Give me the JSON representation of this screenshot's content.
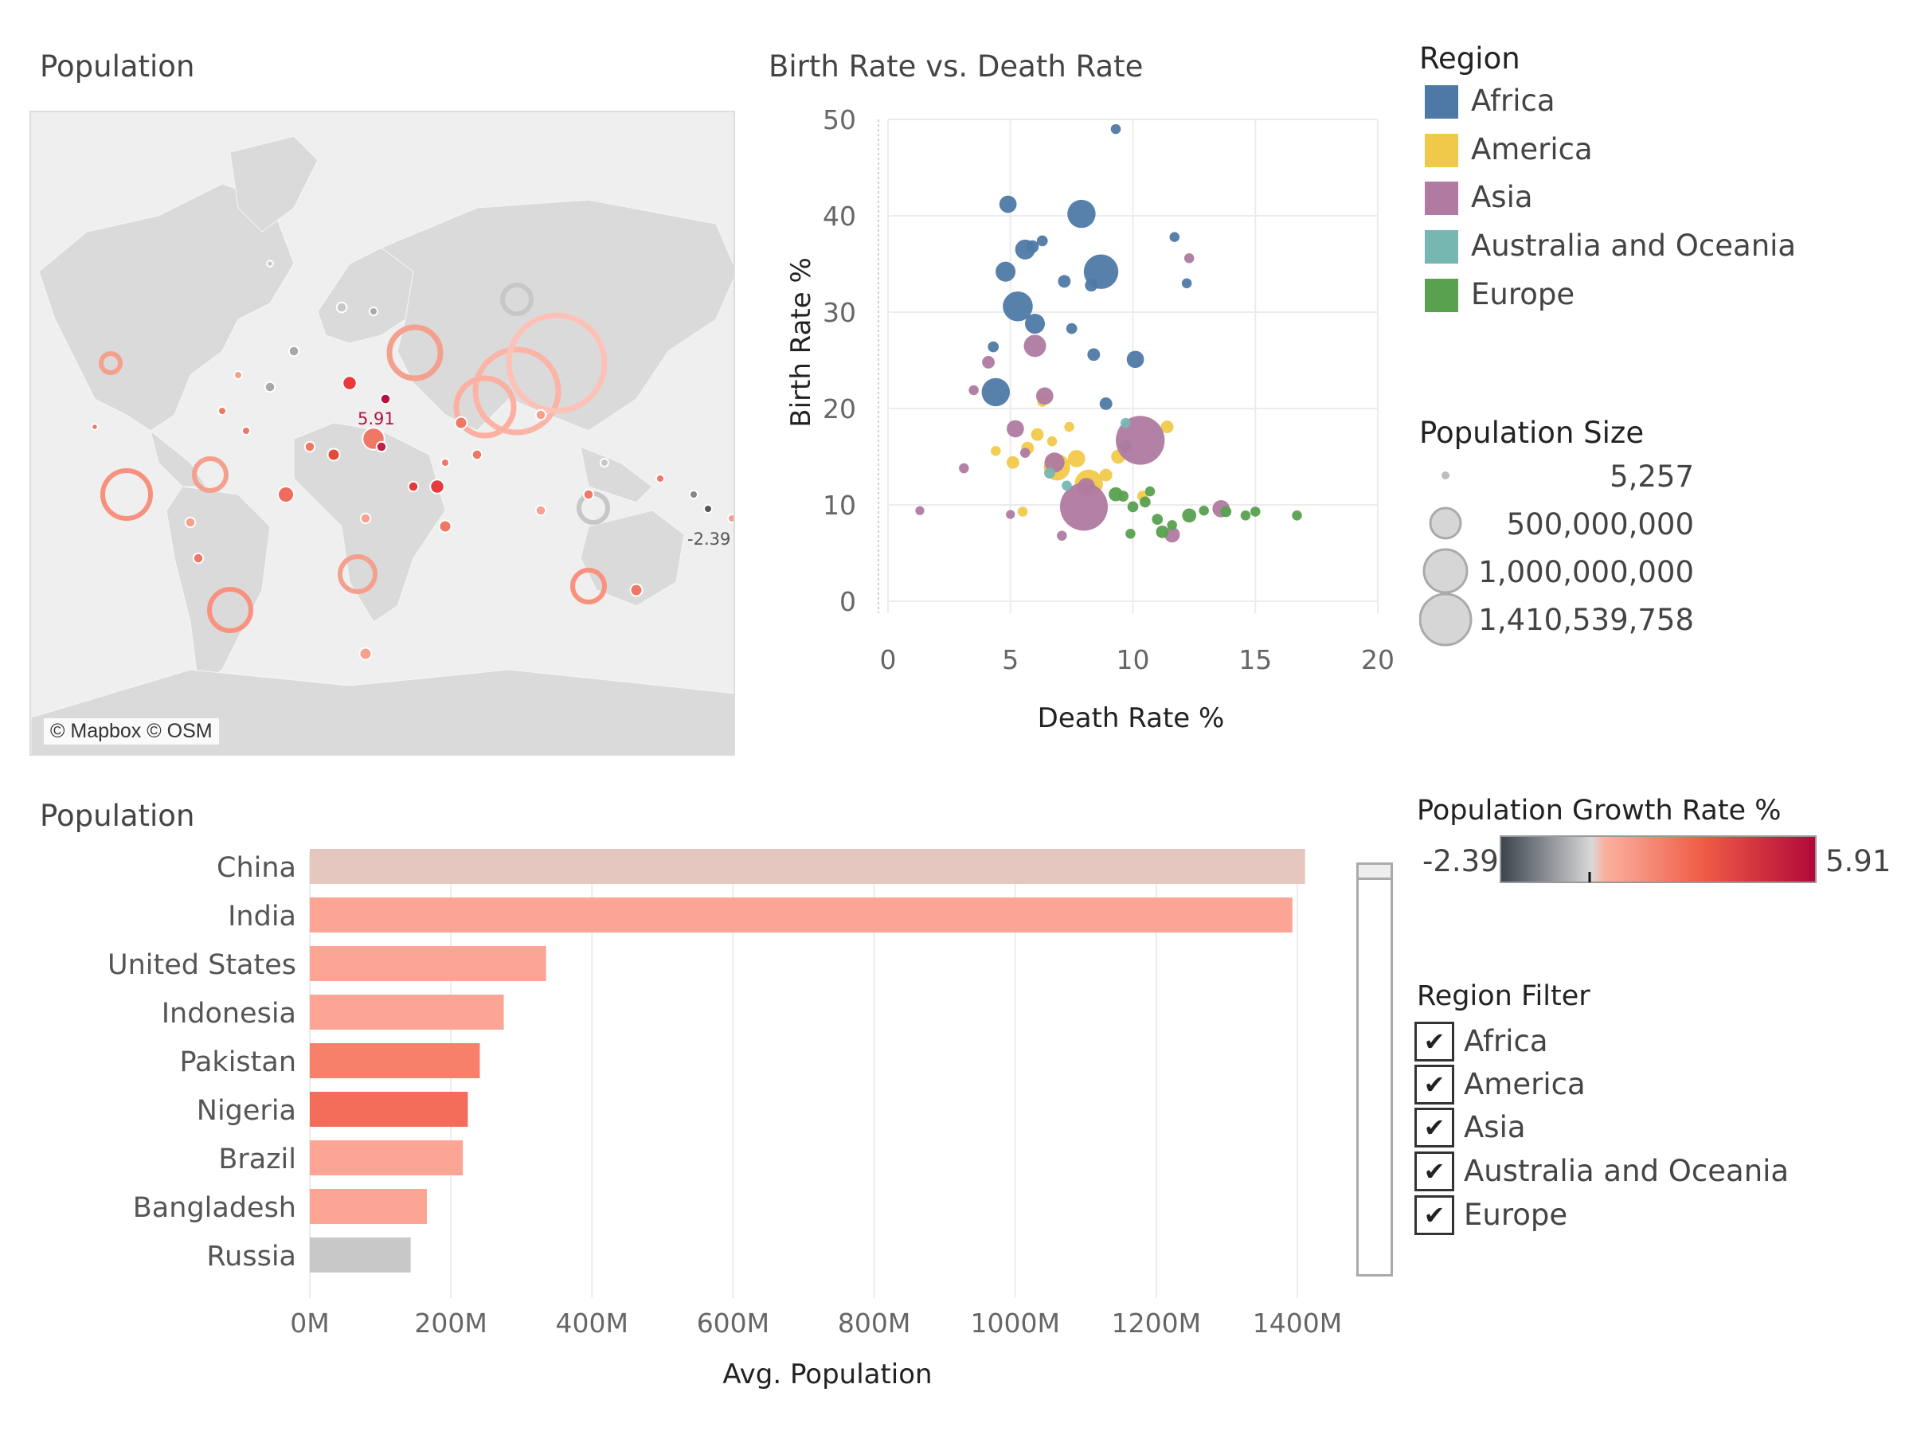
{
  "map": {
    "title": "Population",
    "credit": "© Mapbox © OSM",
    "label_max": "5.91",
    "label_min": "-2.39"
  },
  "scatter": {
    "title": "Birth Rate vs. Death Rate",
    "xlabel": "Death Rate %",
    "ylabel": "Birth Rate %",
    "x_ticks": [
      "0",
      "5",
      "10",
      "15",
      "20"
    ],
    "y_ticks": [
      "0",
      "10",
      "20",
      "30",
      "40",
      "50"
    ]
  },
  "region_legend": {
    "title": "Region",
    "items": [
      {
        "label": "Africa",
        "color": "#4e79a7"
      },
      {
        "label": "America",
        "color": "#f1c94a"
      },
      {
        "label": "Asia",
        "color": "#b07aa1"
      },
      {
        "label": "Australia and Oceania",
        "color": "#76b7b2"
      },
      {
        "label": "Europe",
        "color": "#59a14f"
      }
    ]
  },
  "size_legend": {
    "title": "Population Size",
    "items": [
      "5,257",
      "500,000,000",
      "1,000,000,000",
      "1,410,539,758"
    ]
  },
  "growth_legend": {
    "title": "Population Growth Rate %",
    "min": "-2.39",
    "max": "5.91"
  },
  "region_filter": {
    "title": "Region Filter",
    "items": [
      "Africa",
      "America",
      "Asia",
      "Australia and Oceania",
      "Europe"
    ]
  },
  "bar": {
    "title": "Population"
  },
  "chart_data": [
    {
      "type": "scatter",
      "title": "Birth Rate vs. Death Rate",
      "xlabel": "Death Rate %",
      "ylabel": "Birth Rate %",
      "xlim": [
        0,
        20
      ],
      "ylim": [
        0,
        50
      ],
      "grid": true,
      "series": [
        {
          "name": "Africa",
          "color": "#4e79a7",
          "points": [
            [
              8.7,
              34.2,
              60
            ],
            [
              7.9,
              40.2,
              40
            ],
            [
              4.9,
              41.2,
              15
            ],
            [
              5.3,
              30.6,
              45
            ],
            [
              4.4,
              21.7,
              40
            ],
            [
              5.6,
              36.5,
              20
            ],
            [
              10.1,
              25.1,
              15
            ],
            [
              9.3,
              49.0,
              5
            ],
            [
              4.8,
              34.2,
              20
            ],
            [
              6.0,
              28.8,
              20
            ],
            [
              7.2,
              33.2,
              8
            ],
            [
              8.3,
              32.8,
              8
            ],
            [
              5.9,
              36.8,
              8
            ],
            [
              8.4,
              25.6,
              8
            ],
            [
              8.9,
              20.5,
              8
            ],
            [
              9.7,
              16.1,
              8
            ],
            [
              7.5,
              28.3,
              6
            ],
            [
              6.3,
              37.4,
              6
            ],
            [
              4.3,
              26.4,
              6
            ],
            [
              11.7,
              37.8,
              5
            ],
            [
              12.2,
              33.0,
              5
            ]
          ]
        },
        {
          "name": "America",
          "color": "#f1c94a",
          "points": [
            [
              8.2,
              12.2,
              40
            ],
            [
              6.9,
              13.9,
              35
            ],
            [
              7.7,
              14.8,
              15
            ],
            [
              9.4,
              15.0,
              10
            ],
            [
              6.1,
              17.3,
              8
            ],
            [
              5.7,
              15.9,
              8
            ],
            [
              5.1,
              14.4,
              8
            ],
            [
              6.3,
              20.7,
              5
            ],
            [
              7.4,
              18.1,
              5
            ],
            [
              8.9,
              13.1,
              8
            ],
            [
              4.4,
              15.6,
              5
            ],
            [
              6.7,
              16.6,
              5
            ],
            [
              11.4,
              18.1,
              8
            ],
            [
              10.4,
              10.9,
              6
            ],
            [
              8.0,
              11.9,
              5
            ],
            [
              5.5,
              9.3,
              5
            ]
          ]
        },
        {
          "name": "Asia",
          "color": "#b07aa1",
          "points": [
            [
              10.3,
              16.7,
              120
            ],
            [
              8.0,
              9.8,
              115
            ],
            [
              6.0,
              26.5,
              25
            ],
            [
              5.2,
              17.9,
              15
            ],
            [
              6.8,
              14.4,
              20
            ],
            [
              8.1,
              11.9,
              15
            ],
            [
              13.6,
              9.6,
              15
            ],
            [
              11.6,
              6.9,
              12
            ],
            [
              6.4,
              21.3,
              15
            ],
            [
              4.1,
              24.8,
              8
            ],
            [
              12.3,
              35.6,
              5
            ],
            [
              3.5,
              21.9,
              5
            ],
            [
              3.1,
              13.8,
              5
            ],
            [
              5.6,
              15.4,
              5
            ],
            [
              7.1,
              6.8,
              5
            ],
            [
              1.3,
              9.4,
              4
            ],
            [
              5.0,
              9.0,
              4
            ]
          ]
        },
        {
          "name": "Australia and Oceania",
          "color": "#76b7b2",
          "points": [
            [
              6.6,
              13.3,
              6
            ],
            [
              7.3,
              12.0,
              5
            ],
            [
              9.7,
              18.5,
              5
            ]
          ]
        },
        {
          "name": "Europe",
          "color": "#59a14f",
          "points": [
            [
              12.3,
              8.9,
              10
            ],
            [
              9.3,
              11.1,
              10
            ],
            [
              11.2,
              7.2,
              8
            ],
            [
              10.5,
              10.3,
              6
            ],
            [
              11.0,
              8.5,
              6
            ],
            [
              10.0,
              9.8,
              6
            ],
            [
              9.6,
              10.9,
              6
            ],
            [
              13.8,
              9.3,
              6
            ],
            [
              14.6,
              8.9,
              5
            ],
            [
              15.0,
              9.3,
              5
            ],
            [
              16.7,
              8.9,
              5
            ],
            [
              12.9,
              9.4,
              5
            ],
            [
              11.6,
              7.9,
              5
            ],
            [
              10.7,
              11.4,
              5
            ],
            [
              9.9,
              7.0,
              5
            ]
          ]
        }
      ]
    },
    {
      "type": "bar",
      "title": "Population",
      "xlabel": "Avg. Population",
      "categories": [
        "China",
        "India",
        "United States",
        "Indonesia",
        "Pakistan",
        "Nigeria",
        "Brazil",
        "Bangladesh",
        "Russia"
      ],
      "values": [
        1411000000,
        1393000000,
        335000000,
        275000000,
        241000000,
        224000000,
        217000000,
        166000000,
        143000000
      ],
      "growth_rate": [
        0.03,
        0.9,
        0.7,
        1.0,
        2.0,
        2.5,
        0.6,
        1.0,
        -0.3
      ],
      "colors": [
        "#e6c7c0",
        "#fca595",
        "#fca595",
        "#fca595",
        "#f7806b",
        "#f46d5b",
        "#fca595",
        "#fca595",
        "#c8c8c8"
      ],
      "x_ticks": [
        "0M",
        "200M",
        "400M",
        "600M",
        "800M",
        "1000M",
        "1200M",
        "1400M"
      ],
      "xlim": [
        0,
        1400000000
      ]
    }
  ]
}
